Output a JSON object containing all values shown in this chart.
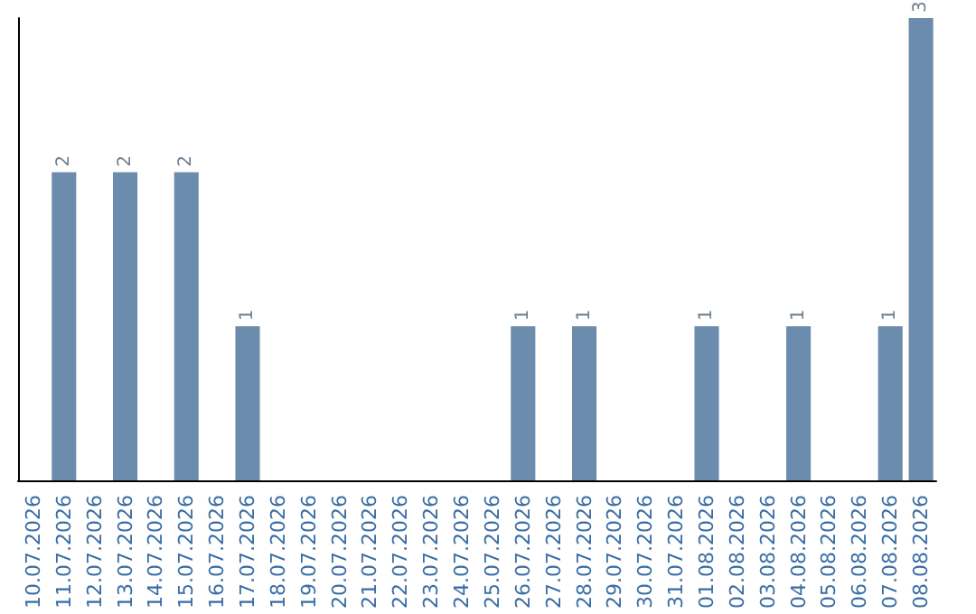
{
  "chart_data": {
    "type": "bar",
    "categories": [
      "10.07.2026",
      "11.07.2026",
      "12.07.2026",
      "13.07.2026",
      "14.07.2026",
      "15.07.2026",
      "16.07.2026",
      "17.07.2026",
      "18.07.2026",
      "19.07.2026",
      "20.07.2026",
      "21.07.2026",
      "22.07.2026",
      "23.07.2026",
      "24.07.2026",
      "25.07.2026",
      "26.07.2026",
      "27.07.2026",
      "28.07.2026",
      "29.07.2026",
      "30.07.2026",
      "31.07.2026",
      "01.08.2026",
      "02.08.2026",
      "03.08.2026",
      "04.08.2026",
      "05.08.2026",
      "06.08.2026",
      "07.08.2026",
      "08.08.2026"
    ],
    "values": [
      0,
      2,
      0,
      2,
      0,
      2,
      0,
      1,
      0,
      0,
      0,
      0,
      0,
      0,
      0,
      0,
      1,
      0,
      1,
      0,
      0,
      0,
      1,
      0,
      0,
      1,
      0,
      0,
      1,
      3
    ],
    "value_labels": [
      null,
      "2",
      null,
      "2",
      null,
      "2",
      null,
      "1",
      null,
      null,
      null,
      null,
      null,
      null,
      null,
      null,
      "1",
      null,
      "1",
      null,
      null,
      null,
      "1",
      null,
      null,
      "1",
      null,
      null,
      "1",
      "3"
    ],
    "color": "#6b8cac",
    "tick_labels": "x",
    "grid": false
  }
}
